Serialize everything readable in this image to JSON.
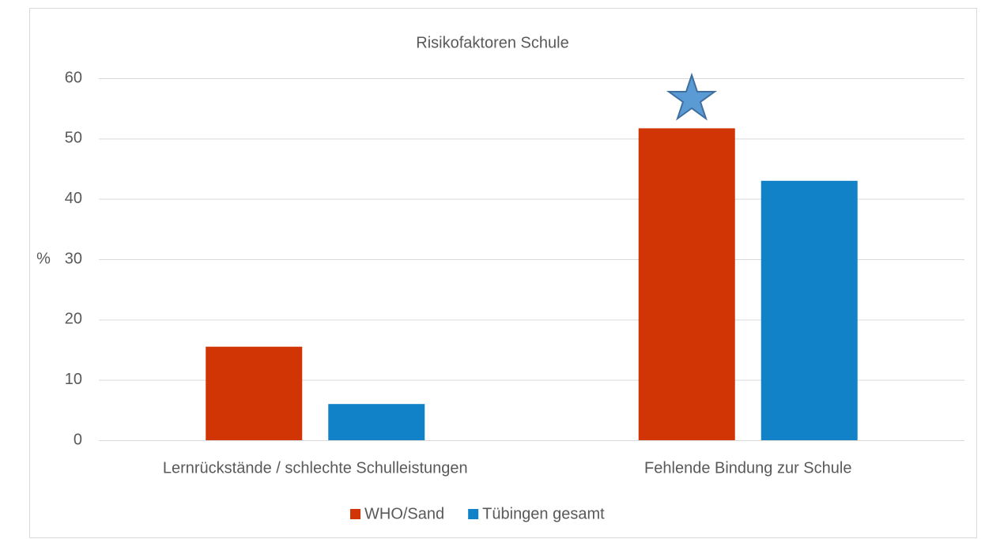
{
  "chart_data": {
    "type": "bar",
    "title": "Risikofaktoren Schule",
    "y_label": "%",
    "categories": [
      "Lernrückstände / schlechte Schulleistungen",
      "Fehlende Bindung zur Schule"
    ],
    "series": [
      {
        "name": "WHO/Sand",
        "color": "#d13405",
        "values": [
          15.5,
          51.7
        ]
      },
      {
        "name": "Tübingen gesamt",
        "color": "#1282c8",
        "values": [
          6,
          43
        ]
      }
    ],
    "ylim": [
      0,
      60
    ],
    "yticks": [
      0,
      10,
      20,
      30,
      40,
      50,
      60
    ],
    "grid": true,
    "legend": "bottom"
  }
}
